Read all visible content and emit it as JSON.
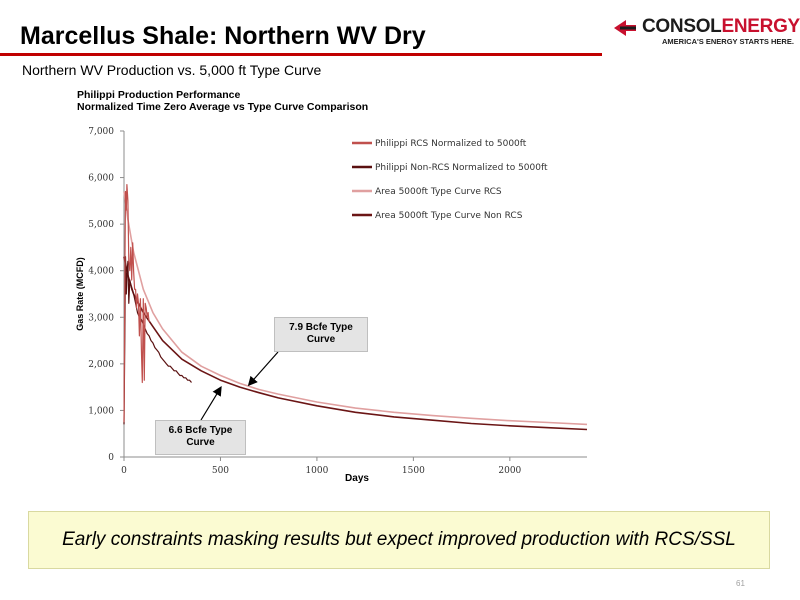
{
  "slide": {
    "title": "Marcellus Shale: Northern WV Dry",
    "subtitle": "Northern WV Production vs. 5,000 ft Type Curve",
    "bottom_text": "Early constraints masking results but expect improved production with RCS/SSL",
    "page_number": "61"
  },
  "logo": {
    "name_part1": "CONSOL",
    "name_part2": "ENERGY",
    "tagline": "AMERICA'S ENERGY STARTS HERE.",
    "colors": {
      "red": "#c8102e",
      "dark": "#1c1c1c"
    }
  },
  "chart_data": {
    "type": "line",
    "title": "Philippi Production Performance\nNormalized Time Zero Average vs Type Curve Comparison",
    "title_lines": [
      "Philippi Production Performance",
      "Normalized Time Zero Average vs Type Curve Comparison"
    ],
    "xlabel": "Days",
    "ylabel": "Gas Rate (MCFD)",
    "xlim": [
      0,
      2400
    ],
    "ylim": [
      0,
      7000
    ],
    "x_ticks": [
      0,
      500,
      1000,
      1500,
      2000
    ],
    "x_tick_labels": [
      "0",
      "500",
      "1000",
      "1500",
      "2000"
    ],
    "y_ticks": [
      0,
      1000,
      2000,
      3000,
      4000,
      5000,
      6000,
      7000
    ],
    "y_tick_labels": [
      "0",
      "1,000",
      "2,000",
      "3,000",
      "4,000",
      "5,000",
      "6,000",
      "7,000"
    ],
    "grid": false,
    "legend_position": "top-right",
    "series": [
      {
        "name": "Philippi RCS Normalized to 5000ft",
        "color": "#c0504d",
        "x": [
          0,
          5,
          8,
          12,
          15,
          20,
          25,
          30,
          35,
          40,
          45,
          50,
          55,
          60,
          65,
          70,
          75,
          80,
          85,
          90,
          95,
          100,
          105,
          110,
          115,
          120,
          125,
          130
        ],
        "y": [
          750,
          4300,
          5700,
          5300,
          5850,
          5500,
          4200,
          4000,
          4500,
          3800,
          4600,
          4000,
          3600,
          3600,
          3200,
          3500,
          3300,
          2600,
          3400,
          2300,
          1600,
          3400,
          1650,
          3300,
          3200,
          3000,
          3100,
          2900
        ]
      },
      {
        "name": "Philippi Non-RCS Normalized to 5000ft",
        "color": "#5a1010",
        "x": [
          0,
          5,
          8,
          12,
          15,
          20,
          25,
          30,
          40,
          50,
          60,
          70,
          80,
          90,
          100,
          110,
          120,
          130,
          140,
          150,
          160,
          170,
          180,
          190,
          200,
          210,
          220,
          230,
          240,
          250,
          260,
          270,
          280,
          290,
          300,
          310,
          320,
          330,
          340,
          350
        ],
        "y": [
          700,
          3000,
          4300,
          3500,
          3900,
          4200,
          3300,
          3800,
          3600,
          3500,
          3300,
          3100,
          3000,
          2950,
          2850,
          2750,
          2650,
          2600,
          2500,
          2450,
          2350,
          2300,
          2250,
          2150,
          2100,
          2050,
          2000,
          1950,
          1950,
          1900,
          1850,
          1850,
          1800,
          1750,
          1750,
          1700,
          1700,
          1650,
          1650,
          1600
        ]
      },
      {
        "name": "Area 5000ft Type Curve RCS",
        "color": "#e0a0a0",
        "x": [
          0,
          20,
          50,
          100,
          150,
          200,
          300,
          400,
          500,
          600,
          700,
          800,
          1000,
          1200,
          1400,
          1600,
          1800,
          2000,
          2200,
          2400
        ],
        "y": [
          5700,
          5100,
          4400,
          3600,
          3100,
          2750,
          2250,
          1950,
          1750,
          1580,
          1450,
          1350,
          1180,
          1050,
          960,
          890,
          830,
          780,
          740,
          700
        ]
      },
      {
        "name": "Area 5000ft Type Curve Non RCS",
        "color": "#6b1515",
        "x": [
          0,
          20,
          50,
          100,
          150,
          200,
          300,
          400,
          500,
          600,
          700,
          800,
          1000,
          1200,
          1400,
          1600,
          1800,
          2000,
          2200,
          2400
        ],
        "y": [
          4300,
          3900,
          3500,
          3100,
          2800,
          2500,
          2100,
          1850,
          1650,
          1500,
          1380,
          1270,
          1100,
          960,
          860,
          790,
          720,
          670,
          630,
          590
        ]
      }
    ],
    "annotations": [
      {
        "text": "7.9 Bcfe Type Curve",
        "lines": [
          "7.9 Bcfe Type",
          "Curve"
        ],
        "arrow_to": {
          "x": 650,
          "y": 1560
        }
      },
      {
        "text": "6.6 Bcfe Type Curve",
        "lines": [
          "6.6 Bcfe Type",
          "Curve"
        ],
        "arrow_to": {
          "x": 500,
          "y": 1480
        }
      }
    ]
  }
}
